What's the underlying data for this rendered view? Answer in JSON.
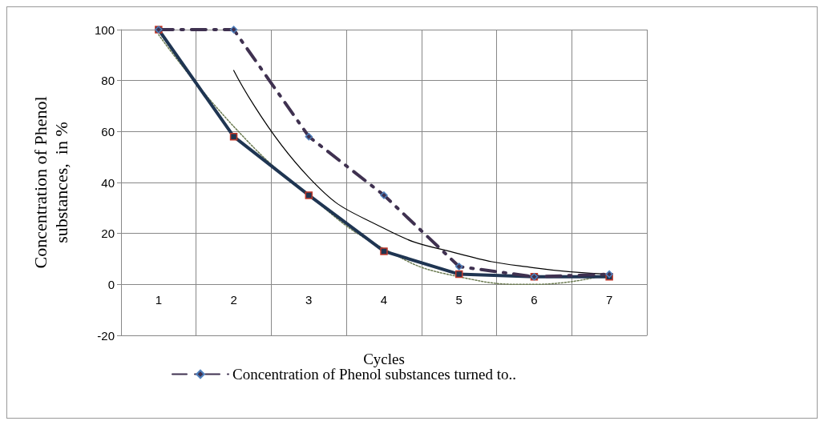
{
  "chart_data": {
    "type": "line",
    "xlabel": "Cycles",
    "ylabel": "Concentration of Phenol\nsubstances,  in %",
    "categories": [
      "1",
      "2",
      "3",
      "4",
      "5",
      "6",
      "7"
    ],
    "series": [
      {
        "name": "Concentration of Phenol substances turned to..",
        "color": "#3f3150",
        "values": [
          100,
          100,
          58,
          35,
          7,
          3,
          4
        ],
        "marker": "diamond",
        "line_style": "dashed"
      },
      {
        "color": "#1f3552",
        "values": [
          100,
          58,
          35,
          13,
          4,
          3,
          3
        ],
        "marker": "square",
        "line_style": "solid"
      },
      {
        "color": "#000000",
        "values": [
          null,
          84,
          42,
          22,
          12,
          6.5,
          4
        ],
        "marker": "none",
        "line_style": "solid"
      },
      {
        "color": "#6b7a50",
        "values": [
          98,
          62,
          35,
          14,
          3,
          0,
          4
        ],
        "marker": "none",
        "line_style": "dotted"
      }
    ],
    "ylim": [
      -20,
      100
    ],
    "yticks": [
      -20,
      0,
      20,
      40,
      60,
      80,
      100
    ],
    "grid": true,
    "legend": "bottom"
  }
}
